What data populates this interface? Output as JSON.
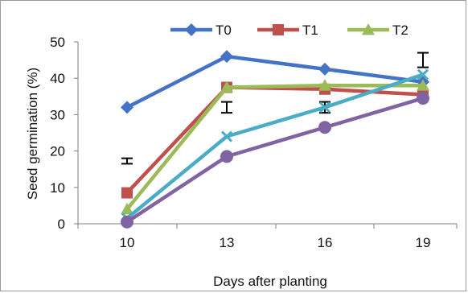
{
  "chart_data": {
    "type": "line",
    "title": "",
    "xlabel": "Days after planting",
    "ylabel": "Seed germination (%)",
    "x": [
      10,
      13,
      16,
      19
    ],
    "x_tick_labels": [
      "10",
      "13",
      "16",
      "19"
    ],
    "ylim": [
      0,
      50
    ],
    "y_ticks": [
      0,
      10,
      20,
      30,
      40,
      50
    ],
    "grid": false,
    "legend_position": "top",
    "series": [
      {
        "name": "T0",
        "color": "#4472C4",
        "marker": "diamond",
        "values": [
          32,
          46,
          42.5,
          39
        ]
      },
      {
        "name": "T1",
        "color": "#C0504D",
        "marker": "square",
        "values": [
          8.5,
          37.5,
          37,
          35.5
        ]
      },
      {
        "name": "T2",
        "color": "#9BBB59",
        "marker": "triangle",
        "values": [
          4,
          37.5,
          38,
          38
        ]
      },
      {
        "color": "#4BACC6",
        "marker": "x",
        "values": [
          1.5,
          24,
          32,
          41
        ]
      },
      {
        "color": "#8064A2",
        "marker": "circle",
        "values": [
          0.5,
          18.5,
          26.5,
          34.5
        ]
      }
    ],
    "error_bars": [
      {
        "x": 10,
        "low": 16.5,
        "high": 18
      },
      {
        "x": 13,
        "low": 30.5,
        "high": 33.5
      },
      {
        "x": 16,
        "low": 30.5,
        "high": 33.5
      },
      {
        "x": 19,
        "low": 43,
        "high": 47
      }
    ]
  }
}
